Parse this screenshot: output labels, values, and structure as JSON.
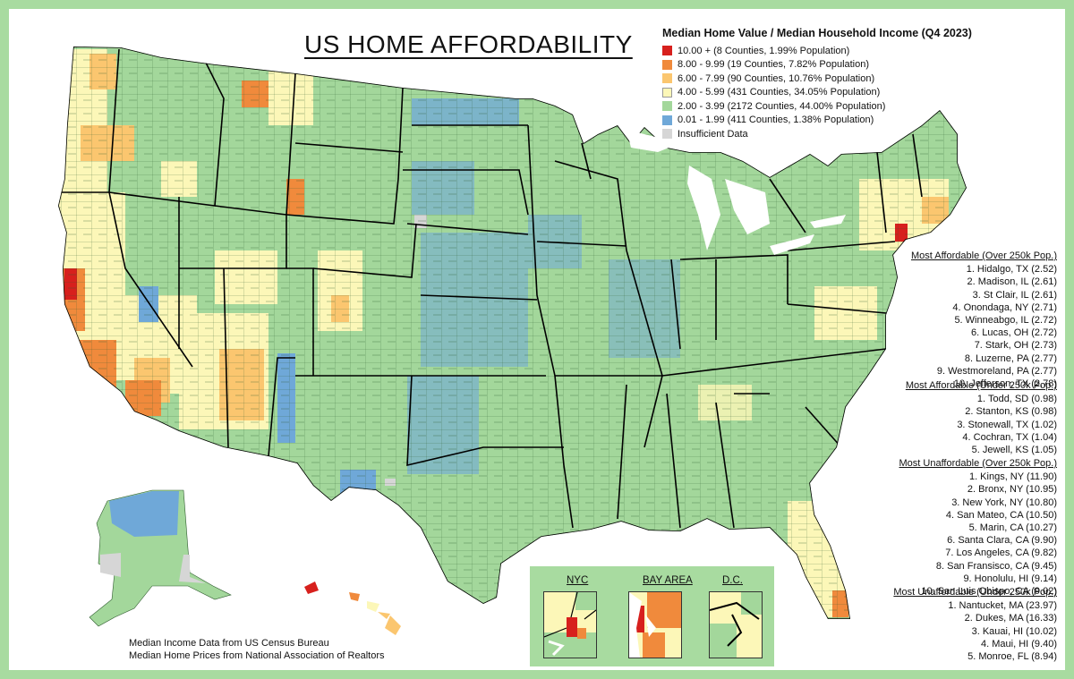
{
  "title": "US HOME AFFORDABILITY",
  "legend": {
    "title": "Median Home Value / Median Household Income (Q4 2023)",
    "items": [
      {
        "label": "10.00 + (8 Counties, 1.99% Population)",
        "color": "#d7201d"
      },
      {
        "label": "8.00 - 9.99 (19 Counties, 7.82% Population)",
        "color": "#f08a3c"
      },
      {
        "label": "6.00 - 7.99 (90 Counties, 10.76% Population)",
        "color": "#fbc66f"
      },
      {
        "label": "4.00 - 5.99 (431 Counties, 34.05% Population)",
        "color": "#fcf7b8"
      },
      {
        "label": "2.00 - 3.99 (2172 Counties, 44.00% Population)",
        "color": "#a3d79b"
      },
      {
        "label": "0.01 - 1.99 (411 Counties, 1.38% Population)",
        "color": "#6fa8d8"
      },
      {
        "label": "Insufficient Data",
        "color": "#d6d6d6"
      }
    ]
  },
  "rankings": [
    {
      "heading": "Most Affordable (Over 250k Pop.)",
      "items": [
        "1. Hidalgo, TX (2.52)",
        "2. Madison, IL (2.61)",
        "3. St Clair, IL (2.61)",
        "4. Onondaga, NY (2.71)",
        "5. Winneabgo, IL (2.72)",
        "6. Lucas, OH (2.72)",
        "7. Stark, OH (2.73)",
        "8. Luzerne, PA (2.77)",
        "9. Westmoreland, PA (2.77)",
        "10. Jefferson, TX (2.78)"
      ]
    },
    {
      "heading": "Most Affordable (Under 250k Pop.)",
      "items": [
        "1. Todd, SD (0.98)",
        "2. Stanton, KS (0.98)",
        "3. Stonewall, TX (1.02)",
        "4. Cochran, TX (1.04)",
        "5. Jewell, KS (1.05)"
      ]
    },
    {
      "heading": "Most Unaffordable (Over 250k Pop.)",
      "items": [
        "1. Kings, NY (11.90)",
        "2. Bronx, NY (10.95)",
        "3. New York, NY (10.80)",
        "4. San Mateo, CA (10.50)",
        "5. Marin, CA (10.27)",
        "6. Santa Clara, CA (9.90)",
        "7. Los Angeles, CA (9.82)",
        "8. San Fransisco, CA (9.45)",
        "9. Honolulu, HI (9.14)",
        "10. San Luis Obispo, CA (9.02)"
      ]
    },
    {
      "heading": "Most Unaffordable (Under 250k Pop.)",
      "items": [
        "1. Nantucket, MA (23.97)",
        "2. Dukes, MA (16.33)",
        "3. Kauai, HI (10.02)",
        "4. Maui, HI (9.40)",
        "5. Monroe, FL (8.94)"
      ]
    }
  ],
  "insets": {
    "nyc": "NYC",
    "bay_area": "BAY AREA",
    "dc": "D.C."
  },
  "sources": [
    "Median Income Data from US Census Bureau",
    "Median Home Prices from National Association of Realtors"
  ]
}
